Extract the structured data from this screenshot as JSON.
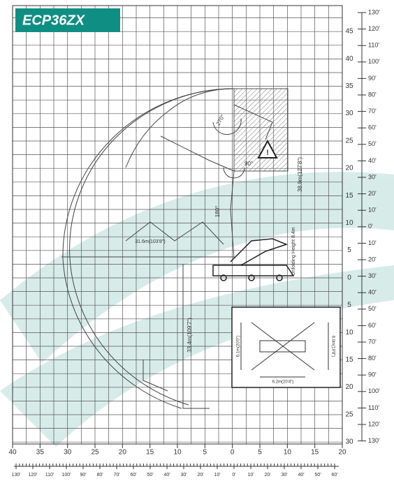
{
  "header": {
    "title": "ECP36ZX"
  },
  "scale_m_right": [
    "45",
    "40",
    "35",
    "30",
    "25",
    "20",
    "15",
    "10",
    "5",
    "0",
    "5",
    "10",
    "15",
    "20",
    "25",
    "30"
  ],
  "scale_ft_right": [
    "130'",
    "120'",
    "110'",
    "100'",
    "90'",
    "80'",
    "70'",
    "60'",
    "50'",
    "40'",
    "30'",
    "20'",
    "10'",
    "0'",
    "10'",
    "20'",
    "30'",
    "40'",
    "50'",
    "60'",
    "70'",
    "80'",
    "90'",
    "100'",
    "110'",
    "120'",
    "130'"
  ],
  "scale_m_bottom": [
    "40",
    "35",
    "30",
    "25",
    "20",
    "15",
    "10",
    "5",
    "0",
    "5",
    "10",
    "15",
    "20"
  ],
  "scale_ft_bottom": [
    "130'",
    "120'",
    "110'",
    "100'",
    "90'",
    "80'",
    "70'",
    "60'",
    "50'",
    "40'",
    "30'",
    "20'",
    "10'",
    "0'",
    "10'",
    "20'",
    "30'",
    "40'",
    "50'",
    "60'"
  ],
  "annotations": {
    "vertical_reach": "38.9m(127'8\")",
    "depth_reach": "33.4m(109'7\")",
    "horizontal_reach": "31.6m(103'8\")",
    "unfolding_height": "Unfolding Height 8.4m",
    "angle_1": "180°",
    "angle_2": "90°",
    "angle_3": "270°"
  },
  "outrigger": {
    "front_span": "6.1m(20'0\")",
    "rear_span": "6.0m(19'8\")",
    "side_span": "6.2m(20'4\")"
  }
}
